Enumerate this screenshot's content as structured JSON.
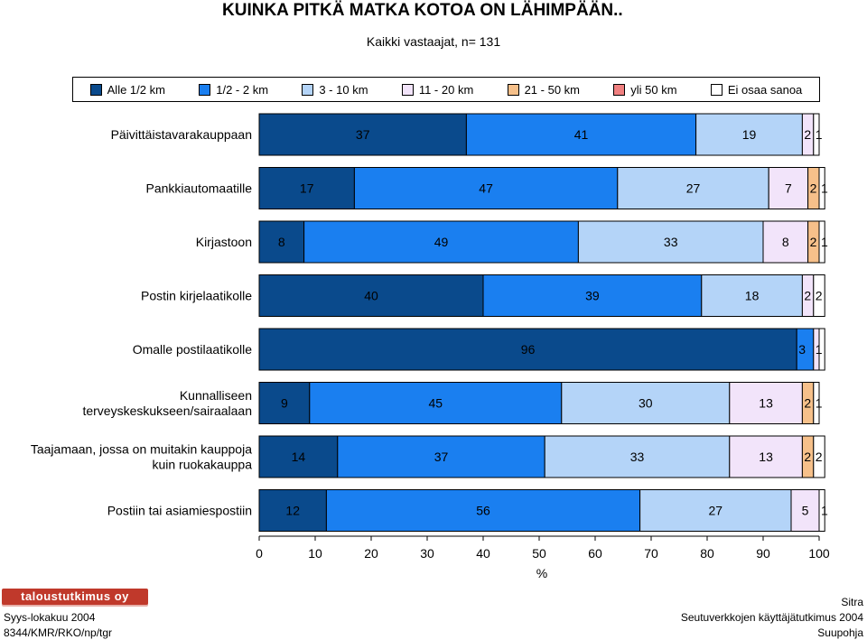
{
  "chart_data": {
    "type": "bar",
    "orientation": "horizontal-stacked-100",
    "title": "KUINKA PITKÄ MATKA KOTOA ON LÄHIMPÄÄN..",
    "subtitle": "Kaikki vastaajat, n= 131",
    "xlabel": "%",
    "xlim": [
      0,
      100
    ],
    "xticks": [
      0,
      10,
      20,
      30,
      40,
      50,
      60,
      70,
      80,
      90,
      100
    ],
    "legend_position": "top",
    "categories": [
      "Päivittäistavarakauppaan",
      "Pankkiautomaatille",
      "Kirjastoon",
      "Postin kirjelaatikolle",
      "Omalle postilaatikolle",
      "Kunnalliseen\nterveyskeskukseen/sairaalaan",
      "Taajamaan, jossa on muitakin kauppoja\nkuin ruokakauppa",
      "Postiin tai asiamiespostiin"
    ],
    "series": [
      {
        "name": "Alle 1/2 km",
        "color": "#0a4a8c",
        "values": [
          37,
          17,
          8,
          40,
          96,
          9,
          14,
          12
        ]
      },
      {
        "name": "1/2  - 2 km",
        "color": "#1a7ff0",
        "values": [
          41,
          47,
          49,
          39,
          3,
          45,
          37,
          56
        ]
      },
      {
        "name": "3 - 10 km",
        "color": "#b4d4f8",
        "values": [
          19,
          27,
          33,
          18,
          0,
          30,
          33,
          27
        ]
      },
      {
        "name": "11 - 20 km",
        "color": "#f2e4fa",
        "values": [
          2,
          7,
          8,
          2,
          1,
          13,
          13,
          5
        ]
      },
      {
        "name": "21 - 50 km",
        "color": "#f6c08a",
        "values": [
          0,
          2,
          2,
          0,
          0,
          2,
          2,
          0
        ]
      },
      {
        "name": "yli 50 km",
        "color": "#f08080",
        "values": [
          0,
          0,
          0,
          0,
          0,
          0,
          0,
          0
        ]
      },
      {
        "name": "Ei osaa sanoa",
        "color": "#ffffff",
        "values": [
          1,
          1,
          1,
          2,
          1,
          1,
          2,
          1
        ]
      }
    ],
    "bar_labels": [
      [
        {
          "s": 0,
          "t": "37"
        },
        {
          "s": 1,
          "t": "41"
        },
        {
          "s": 2,
          "t": "19"
        },
        {
          "s": 3,
          "t": "2"
        },
        {
          "s": 6,
          "t": "1"
        }
      ],
      [
        {
          "s": 0,
          "t": "17"
        },
        {
          "s": 1,
          "t": "47"
        },
        {
          "s": 2,
          "t": "27"
        },
        {
          "s": 3,
          "t": "7"
        },
        {
          "s": 4,
          "t": "2"
        },
        {
          "s": 6,
          "t": "1"
        }
      ],
      [
        {
          "s": 0,
          "t": "8"
        },
        {
          "s": 1,
          "t": "49"
        },
        {
          "s": 2,
          "t": "33"
        },
        {
          "s": 3,
          "t": "8"
        },
        {
          "s": 4,
          "t": "2"
        },
        {
          "s": 6,
          "t": "1"
        }
      ],
      [
        {
          "s": 0,
          "t": "40"
        },
        {
          "s": 1,
          "t": "39"
        },
        {
          "s": 2,
          "t": "18"
        },
        {
          "s": 3,
          "t": "2"
        },
        {
          "s": 6,
          "t": "2"
        }
      ],
      [
        {
          "s": 0,
          "t": "96"
        },
        {
          "s": 1,
          "t": "3"
        },
        {
          "s": 3,
          "t": "1"
        }
      ],
      [
        {
          "s": 0,
          "t": "9"
        },
        {
          "s": 1,
          "t": "45"
        },
        {
          "s": 2,
          "t": "30"
        },
        {
          "s": 3,
          "t": "13"
        },
        {
          "s": 4,
          "t": "2"
        },
        {
          "s": 6,
          "t": "1"
        }
      ],
      [
        {
          "s": 0,
          "t": "14"
        },
        {
          "s": 1,
          "t": "37"
        },
        {
          "s": 2,
          "t": "33"
        },
        {
          "s": 3,
          "t": "13"
        },
        {
          "s": 4,
          "t": "2"
        },
        {
          "s": 6,
          "t": "2"
        }
      ],
      [
        {
          "s": 0,
          "t": "12"
        },
        {
          "s": 1,
          "t": "56"
        },
        {
          "s": 2,
          "t": "27"
        },
        {
          "s": 3,
          "t": "5"
        },
        {
          "s": 6,
          "t": "1"
        }
      ]
    ]
  },
  "footer": {
    "logo_text": "taloustutkimus oy",
    "date": "Syys-lokakuu 2004",
    "code": "8344/KMR/RKO/np/tgr",
    "org": "Sitra",
    "study": "Seutuverkkojen käyttäjätutkimus 2004",
    "region": "Suupohja"
  }
}
